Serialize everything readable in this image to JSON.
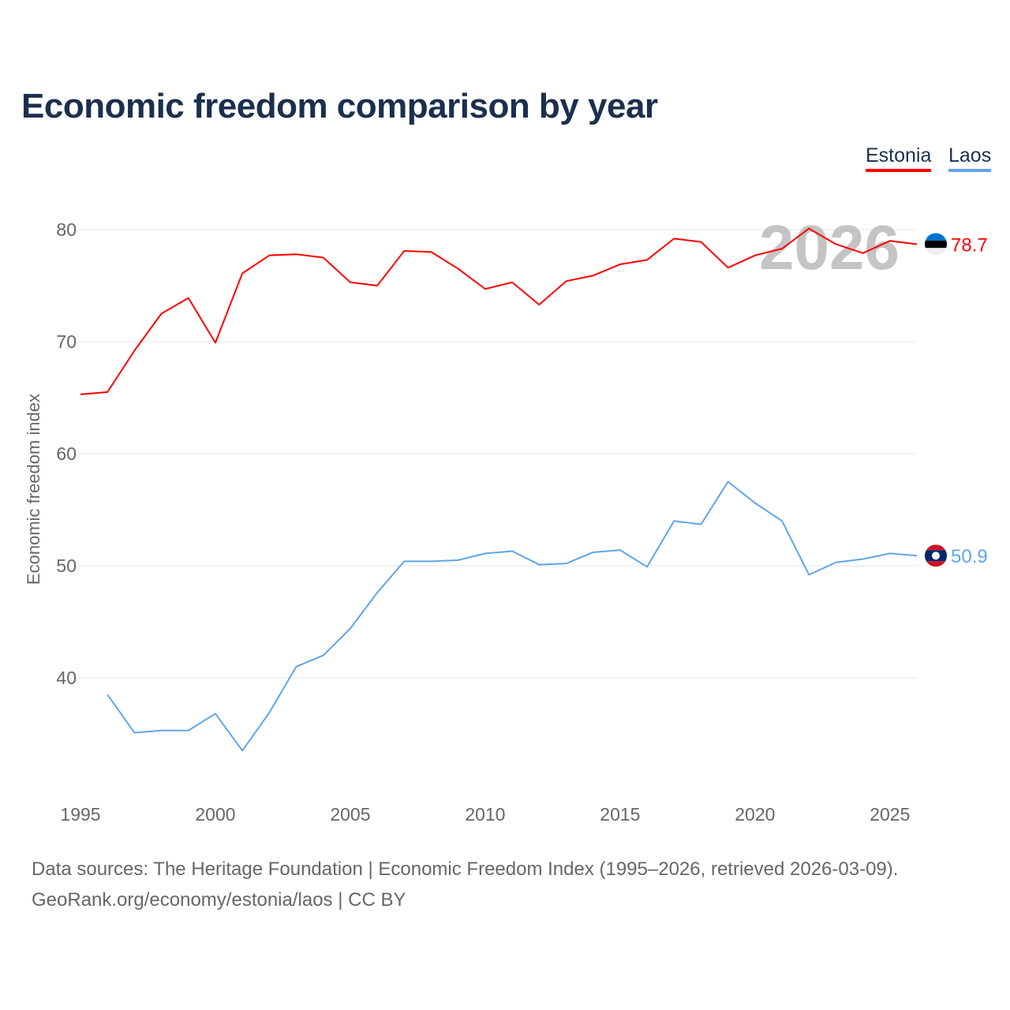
{
  "title": "Economic freedom comparison by year",
  "legend": [
    {
      "label": "Estonia",
      "color": "#ff0000"
    },
    {
      "label": "Laos",
      "color": "#60a5ea"
    }
  ],
  "year_watermark": "2026",
  "footer": {
    "line1": "Data sources: The Heritage Foundation | Economic Freedom Index (1995–2026, retrieved 2026-03-09).",
    "line2": "GeoRank.org/economy/estonia/laos | CC BY"
  },
  "chart_data": {
    "type": "line",
    "title": "Economic freedom comparison by year",
    "xlabel": "",
    "ylabel": "Economic freedom index",
    "xlim": [
      1995,
      2026
    ],
    "ylim": [
      30,
      84
    ],
    "x_ticks": [
      1995,
      2000,
      2005,
      2010,
      2015,
      2020,
      2025
    ],
    "y_ticks": [
      40,
      50,
      60,
      70,
      80
    ],
    "grid": true,
    "legend_position": "top-right",
    "series": [
      {
        "name": "Estonia",
        "color": "#ff0000",
        "end_label": "78.7",
        "flag": "estonia-flag",
        "x": [
          1995,
          1996,
          1997,
          1998,
          1999,
          2000,
          2001,
          2002,
          2003,
          2004,
          2005,
          2006,
          2007,
          2008,
          2009,
          2010,
          2011,
          2012,
          2013,
          2014,
          2015,
          2016,
          2017,
          2018,
          2019,
          2020,
          2021,
          2022,
          2023,
          2024,
          2025,
          2026
        ],
        "values": [
          65.3,
          65.5,
          69.2,
          72.5,
          73.9,
          69.9,
          76.1,
          77.7,
          77.8,
          77.5,
          75.3,
          75.0,
          78.1,
          78.0,
          76.5,
          74.7,
          75.3,
          73.3,
          75.4,
          75.9,
          76.9,
          77.3,
          79.2,
          78.9,
          76.6,
          77.7,
          78.3,
          80.1,
          78.7,
          77.9,
          79.0,
          78.7
        ]
      },
      {
        "name": "Laos",
        "color": "#60a5ea",
        "end_label": "50.9",
        "flag": "laos-flag",
        "x": [
          1996,
          1997,
          1998,
          1999,
          2000,
          2001,
          2002,
          2003,
          2004,
          2005,
          2006,
          2007,
          2008,
          2009,
          2010,
          2011,
          2012,
          2013,
          2014,
          2015,
          2016,
          2017,
          2018,
          2019,
          2020,
          2021,
          2022,
          2023,
          2024,
          2025,
          2026
        ],
        "values": [
          38.5,
          35.1,
          35.3,
          35.3,
          36.8,
          33.5,
          36.9,
          41.0,
          42.0,
          44.4,
          47.6,
          50.4,
          50.4,
          50.5,
          51.1,
          51.3,
          50.1,
          50.2,
          51.2,
          51.4,
          49.9,
          54.0,
          53.7,
          57.5,
          55.6,
          54.0,
          49.2,
          50.3,
          50.6,
          51.1,
          50.9
        ]
      }
    ]
  }
}
